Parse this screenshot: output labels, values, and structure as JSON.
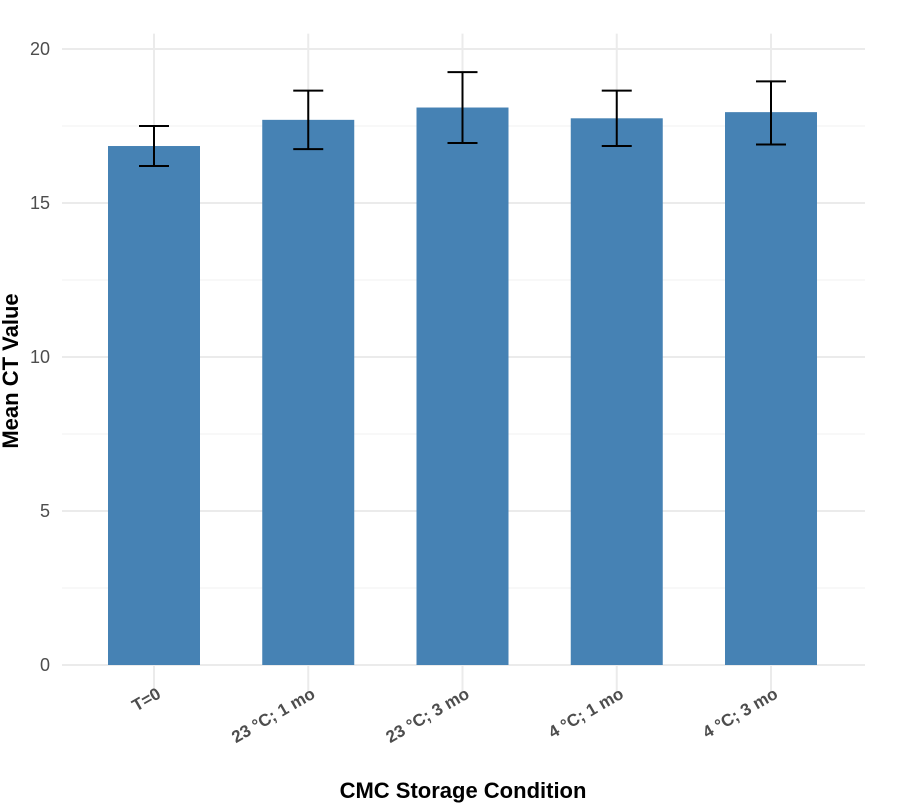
{
  "chart_data": {
    "type": "bar",
    "title": "",
    "xlabel": "CMC Storage Condition",
    "ylabel": "Mean CT Value",
    "categories": [
      "T=0",
      "23 °C; 1 mo",
      "23 °C; 3 mo",
      "4 °C; 1 mo",
      "4 °C; 3 mo"
    ],
    "values": [
      16.85,
      17.7,
      18.1,
      17.75,
      17.95
    ],
    "error_low": [
      16.2,
      16.75,
      16.95,
      16.85,
      16.9
    ],
    "error_high": [
      17.5,
      18.65,
      19.25,
      18.65,
      18.95
    ],
    "ylim": [
      0,
      20.5
    ],
    "yticks": [
      0,
      5,
      10,
      15,
      20
    ],
    "grid": true,
    "legend": "none",
    "bar_color": "#4682b4",
    "errorbar_color": "#000000",
    "grid_color": "#ebebeb"
  }
}
